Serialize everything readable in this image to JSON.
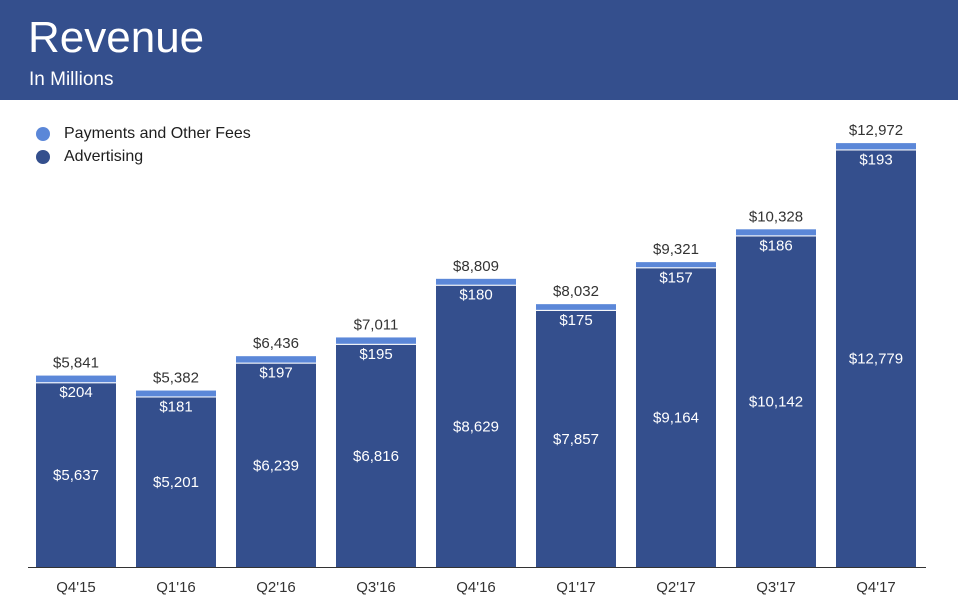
{
  "header": {
    "title": "Revenue",
    "subtitle": "In Millions"
  },
  "colors": {
    "header_bg": "#344f8d",
    "advertising": "#344f8d",
    "payments": "#5b87d8",
    "label_dark": "#333333",
    "label_light": "#ffffff"
  },
  "chart_data": {
    "type": "bar",
    "stacked": true,
    "title": "Revenue",
    "subtitle": "In Millions",
    "categories": [
      "Q4'15",
      "Q1'16",
      "Q2'16",
      "Q3'16",
      "Q4'16",
      "Q1'17",
      "Q2'17",
      "Q3'17",
      "Q4'17"
    ],
    "series": [
      {
        "name": "Advertising",
        "values": [
          5637,
          5201,
          6239,
          6816,
          8629,
          7857,
          9164,
          10142,
          12779
        ],
        "labels": [
          "$5,637",
          "$5,201",
          "$6,239",
          "$6,816",
          "$8,629",
          "$7,857",
          "$9,164",
          "$10,142",
          "$12,779"
        ]
      },
      {
        "name": "Payments and Other Fees",
        "values": [
          204,
          181,
          197,
          195,
          180,
          175,
          157,
          186,
          193
        ],
        "labels": [
          "$204",
          "$181",
          "$197",
          "$195",
          "$180",
          "$175",
          "$157",
          "$186",
          "$193"
        ]
      }
    ],
    "totals": [
      5841,
      5382,
      6436,
      7011,
      8809,
      8032,
      9321,
      10328,
      12972
    ],
    "total_labels": [
      "$5,841",
      "$5,382",
      "$6,436",
      "$7,011",
      "$8,809",
      "$8,032",
      "$9,321",
      "$10,328",
      "$12,972"
    ],
    "ylim": [
      0,
      13500
    ],
    "grid": false,
    "legend_position": "top-left"
  },
  "legend": [
    {
      "label": "Payments and Other Fees",
      "color": "#5b87d8"
    },
    {
      "label": "Advertising",
      "color": "#344f8d"
    }
  ]
}
